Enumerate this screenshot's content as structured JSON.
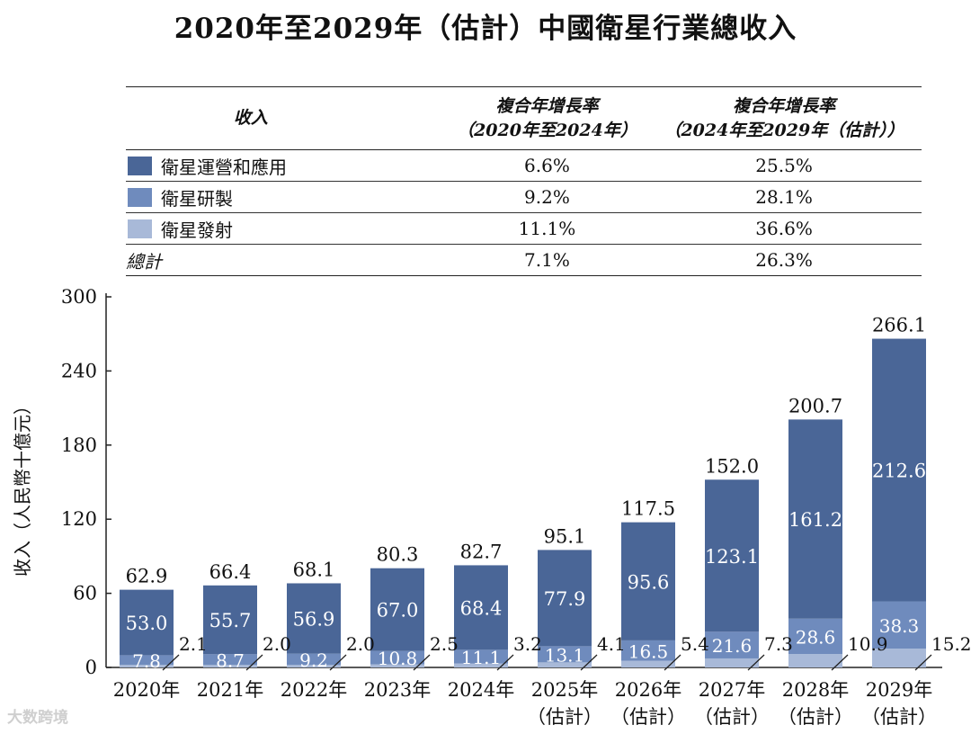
{
  "title": "2020年至2029年（估計）中國衛星行業總收入",
  "table": {
    "headers": [
      "收入",
      "複合年增長率\n（2020年至2024年）",
      "複合年增長率\n（2024年至2029年（估計））"
    ],
    "rows": [
      {
        "label": "衛星運營和應用",
        "color": "#4a6697",
        "cagr1": "6.6%",
        "cagr2": "25.5%"
      },
      {
        "label": "衛星研製",
        "color": "#6f8bbd",
        "cagr1": "9.2%",
        "cagr2": "28.1%"
      },
      {
        "label": "衛星發射",
        "color": "#a8b9d8",
        "cagr1": "11.1%",
        "cagr2": "36.6%"
      },
      {
        "label": "總計",
        "color": "",
        "cagr1": "7.1%",
        "cagr2": "26.3%"
      }
    ]
  },
  "chart_data": {
    "type": "bar",
    "stacked": true,
    "ylabel": "收入（人民幣十億元）",
    "ylim": [
      0,
      300
    ],
    "yticks": [
      0,
      60,
      120,
      180,
      240,
      300
    ],
    "categories": [
      [
        "2020年"
      ],
      [
        "2021年"
      ],
      [
        "2022年"
      ],
      [
        "2023年"
      ],
      [
        "2024年"
      ],
      [
        "2025年",
        "（估計）"
      ],
      [
        "2026年",
        "（估計）"
      ],
      [
        "2027年",
        "（估計）"
      ],
      [
        "2028年",
        "（估計）"
      ],
      [
        "2029年",
        "（估計）"
      ]
    ],
    "series": [
      {
        "name": "衛星發射",
        "color": "#a8b9d8",
        "values": [
          2.1,
          2.0,
          2.0,
          2.5,
          3.2,
          4.1,
          5.4,
          7.3,
          10.9,
          15.2
        ]
      },
      {
        "name": "衛星研製",
        "color": "#6f8bbd",
        "values": [
          7.8,
          8.7,
          9.2,
          10.8,
          11.1,
          13.1,
          16.5,
          21.6,
          28.6,
          38.3
        ]
      },
      {
        "name": "衛星運營和應用",
        "color": "#4a6697",
        "values": [
          53.0,
          55.7,
          56.9,
          67.0,
          68.4,
          77.9,
          95.6,
          123.1,
          161.2,
          212.6
        ]
      }
    ],
    "totals": [
      62.9,
      66.4,
      68.1,
      80.3,
      82.7,
      95.1,
      117.5,
      152.0,
      200.7,
      266.1
    ]
  },
  "watermark": "大数跨境"
}
